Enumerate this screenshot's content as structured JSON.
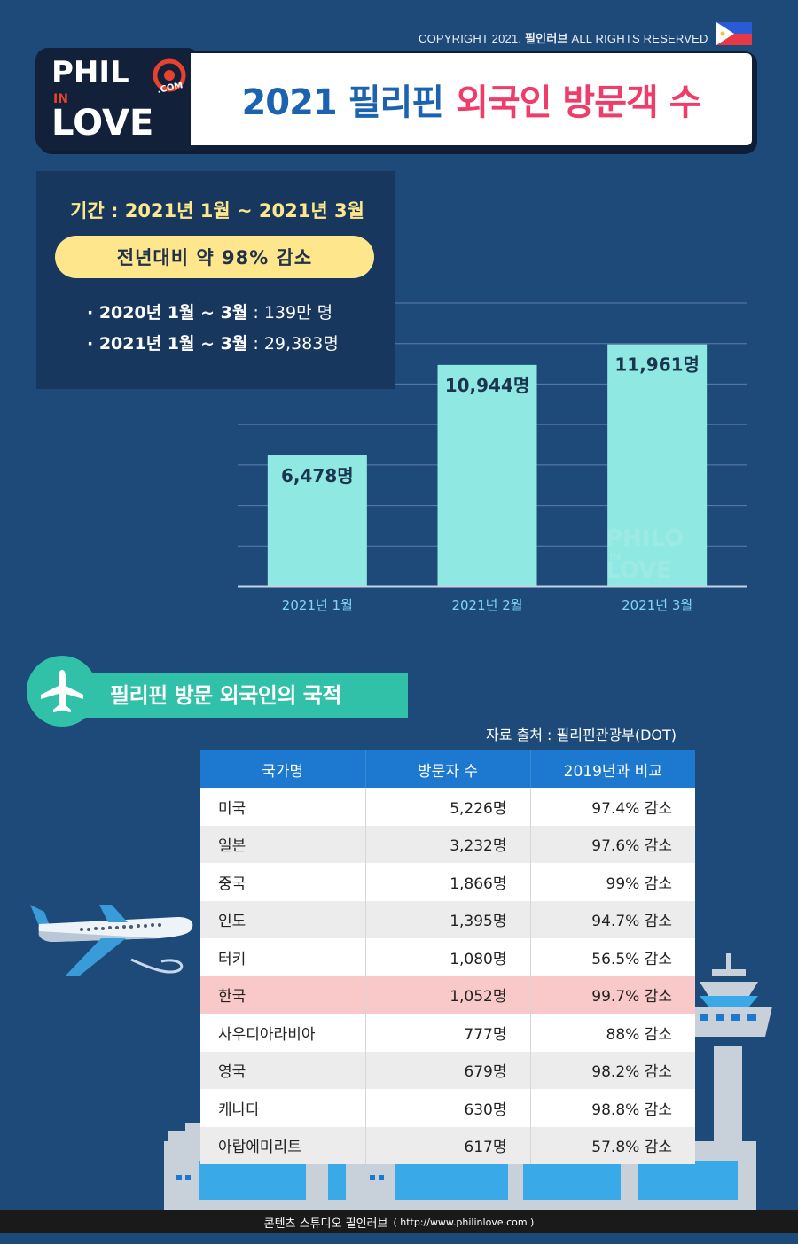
{
  "copyright": {
    "prefix": "COPYRIGHT 2021.",
    "brand": "필인러브",
    "suffix": "ALL RIGHTS RESERVED"
  },
  "logo": {
    "line1": "PHIL",
    "line2": "IN",
    "line3": "LOVE",
    "dotcom": ".COM"
  },
  "header": {
    "title_part1": "2021 필리핀",
    "title_part2": "외국인 방문객 수"
  },
  "summary": {
    "period": "기간 : 2021년 1월 ~ 2021년 3월",
    "highlight": "전년대비 약 98% 감소",
    "stat1_label": "· 2020년 1월 ~ 3월",
    "stat1_value": ": 139만 명",
    "stat2_label": "· 2021년 1월 ~ 3월",
    "stat2_value": ": 29,383명"
  },
  "chart_data": {
    "type": "bar",
    "categories": [
      "2021년  1월",
      "2021년  2월",
      "2021년  3월"
    ],
    "values": [
      6478,
      10944,
      11961
    ],
    "value_labels": [
      "6,478명",
      "10,944명",
      "11,961명"
    ],
    "ylim": [
      0,
      14000
    ],
    "grid": true,
    "bar_color": "#8fe8e2",
    "title": "",
    "xlabel": "",
    "ylabel": ""
  },
  "section": {
    "title": "필리핀 방문 외국인의 국적",
    "source": "자료 출처 : 필리핀관광부(DOT)"
  },
  "table": {
    "headers": [
      "국가명",
      "방문자 수",
      "2019년과 비교"
    ],
    "rows": [
      {
        "country": "미국",
        "visitors": "5,226명",
        "compare": "97.4% 감소"
      },
      {
        "country": "일본",
        "visitors": "3,232명",
        "compare": "97.6% 감소"
      },
      {
        "country": "중국",
        "visitors": "1,866명",
        "compare": "99% 감소"
      },
      {
        "country": "인도",
        "visitors": "1,395명",
        "compare": "94.7% 감소"
      },
      {
        "country": "터키",
        "visitors": "1,080명",
        "compare": "56.5% 감소"
      },
      {
        "country": "한국",
        "visitors": "1,052명",
        "compare": "99.7% 감소"
      },
      {
        "country": "사우디아라비아",
        "visitors": "777명",
        "compare": "88% 감소"
      },
      {
        "country": "영국",
        "visitors": "679명",
        "compare": "98.2% 감소"
      },
      {
        "country": "캐나다",
        "visitors": "630명",
        "compare": "98.8% 감소"
      },
      {
        "country": "아랍에미리트",
        "visitors": "617명",
        "compare": "57.8% 감소"
      }
    ]
  },
  "footer": {
    "text": "콘텐츠 스튜디오 필인러브",
    "url": "( http://www.philinlove.com )"
  }
}
